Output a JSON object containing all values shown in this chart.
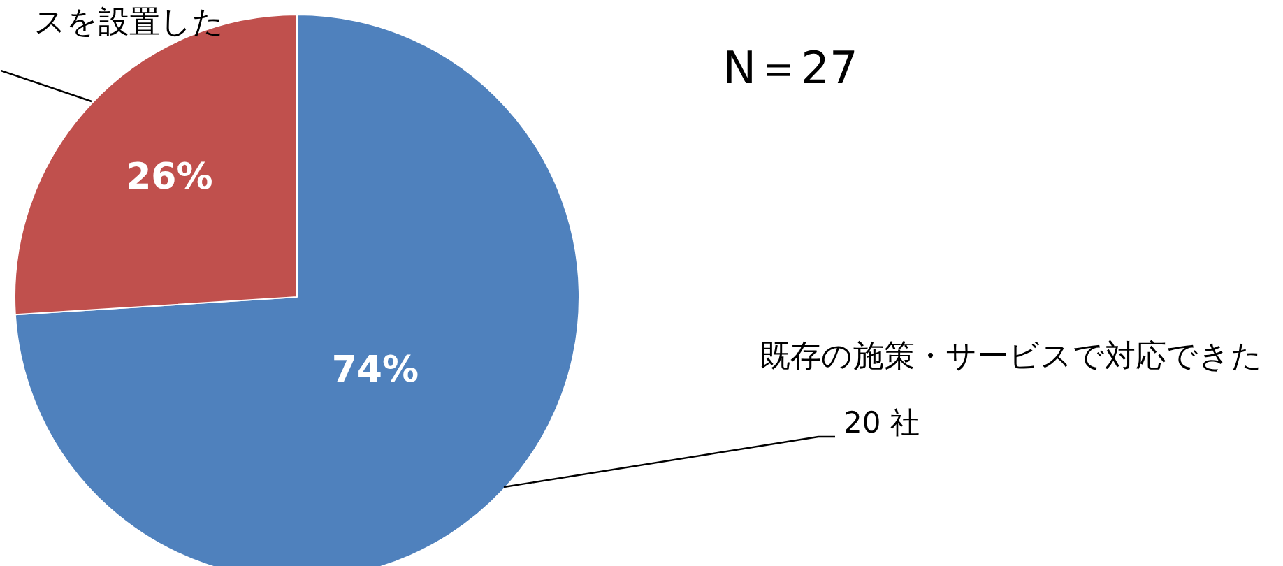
{
  "chart_data": {
    "type": "pie",
    "title": "N＝27",
    "categories": [
      "既存の施策・サービスで対応できた",
      "スを設置した"
    ],
    "values": [
      74,
      26
    ],
    "colors": [
      "#4f81bd",
      "#c0504d"
    ],
    "value_labels": [
      "74%",
      "26%"
    ],
    "annotations": [
      "20 社"
    ]
  }
}
